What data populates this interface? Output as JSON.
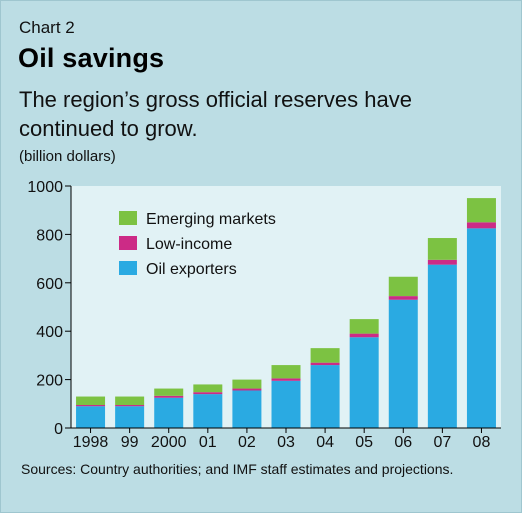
{
  "header": {
    "chart_label": "Chart 2",
    "title": "Oil savings",
    "subtitle": "The region’s gross official reserves have continued to grow."
  },
  "unit_label": "(billion dollars)",
  "footer": {
    "source": "Sources: Country authorities; and IMF staff estimates and projections."
  },
  "colors": {
    "background": "#bcdde4",
    "plot_background": "#e1f2f5",
    "oil_exporters": "#2aaae2",
    "low_income": "#cc2b86",
    "emerging_markets": "#7cc242"
  },
  "chart_data": {
    "type": "bar",
    "stacked": true,
    "categories": [
      "1998",
      "99",
      "2000",
      "01",
      "02",
      "03",
      "04",
      "05",
      "06",
      "07",
      "08"
    ],
    "series": [
      {
        "name": "Oil exporters",
        "values": [
          90,
          90,
          125,
          140,
          155,
          195,
          260,
          375,
          530,
          675,
          825
        ]
      },
      {
        "name": "Low-income",
        "values": [
          5,
          5,
          8,
          8,
          8,
          10,
          10,
          15,
          15,
          20,
          25
        ]
      },
      {
        "name": "Emerging markets",
        "values": [
          35,
          35,
          30,
          32,
          37,
          55,
          60,
          60,
          80,
          90,
          100
        ]
      }
    ],
    "legend_order": [
      "Emerging markets",
      "Low-income",
      "Oil exporters"
    ],
    "legend_position": "top-left",
    "ylim": [
      0,
      1000
    ],
    "yticks": [
      0,
      200,
      400,
      600,
      800,
      1000
    ],
    "xlabel": "",
    "ylabel": "",
    "grid": false
  }
}
